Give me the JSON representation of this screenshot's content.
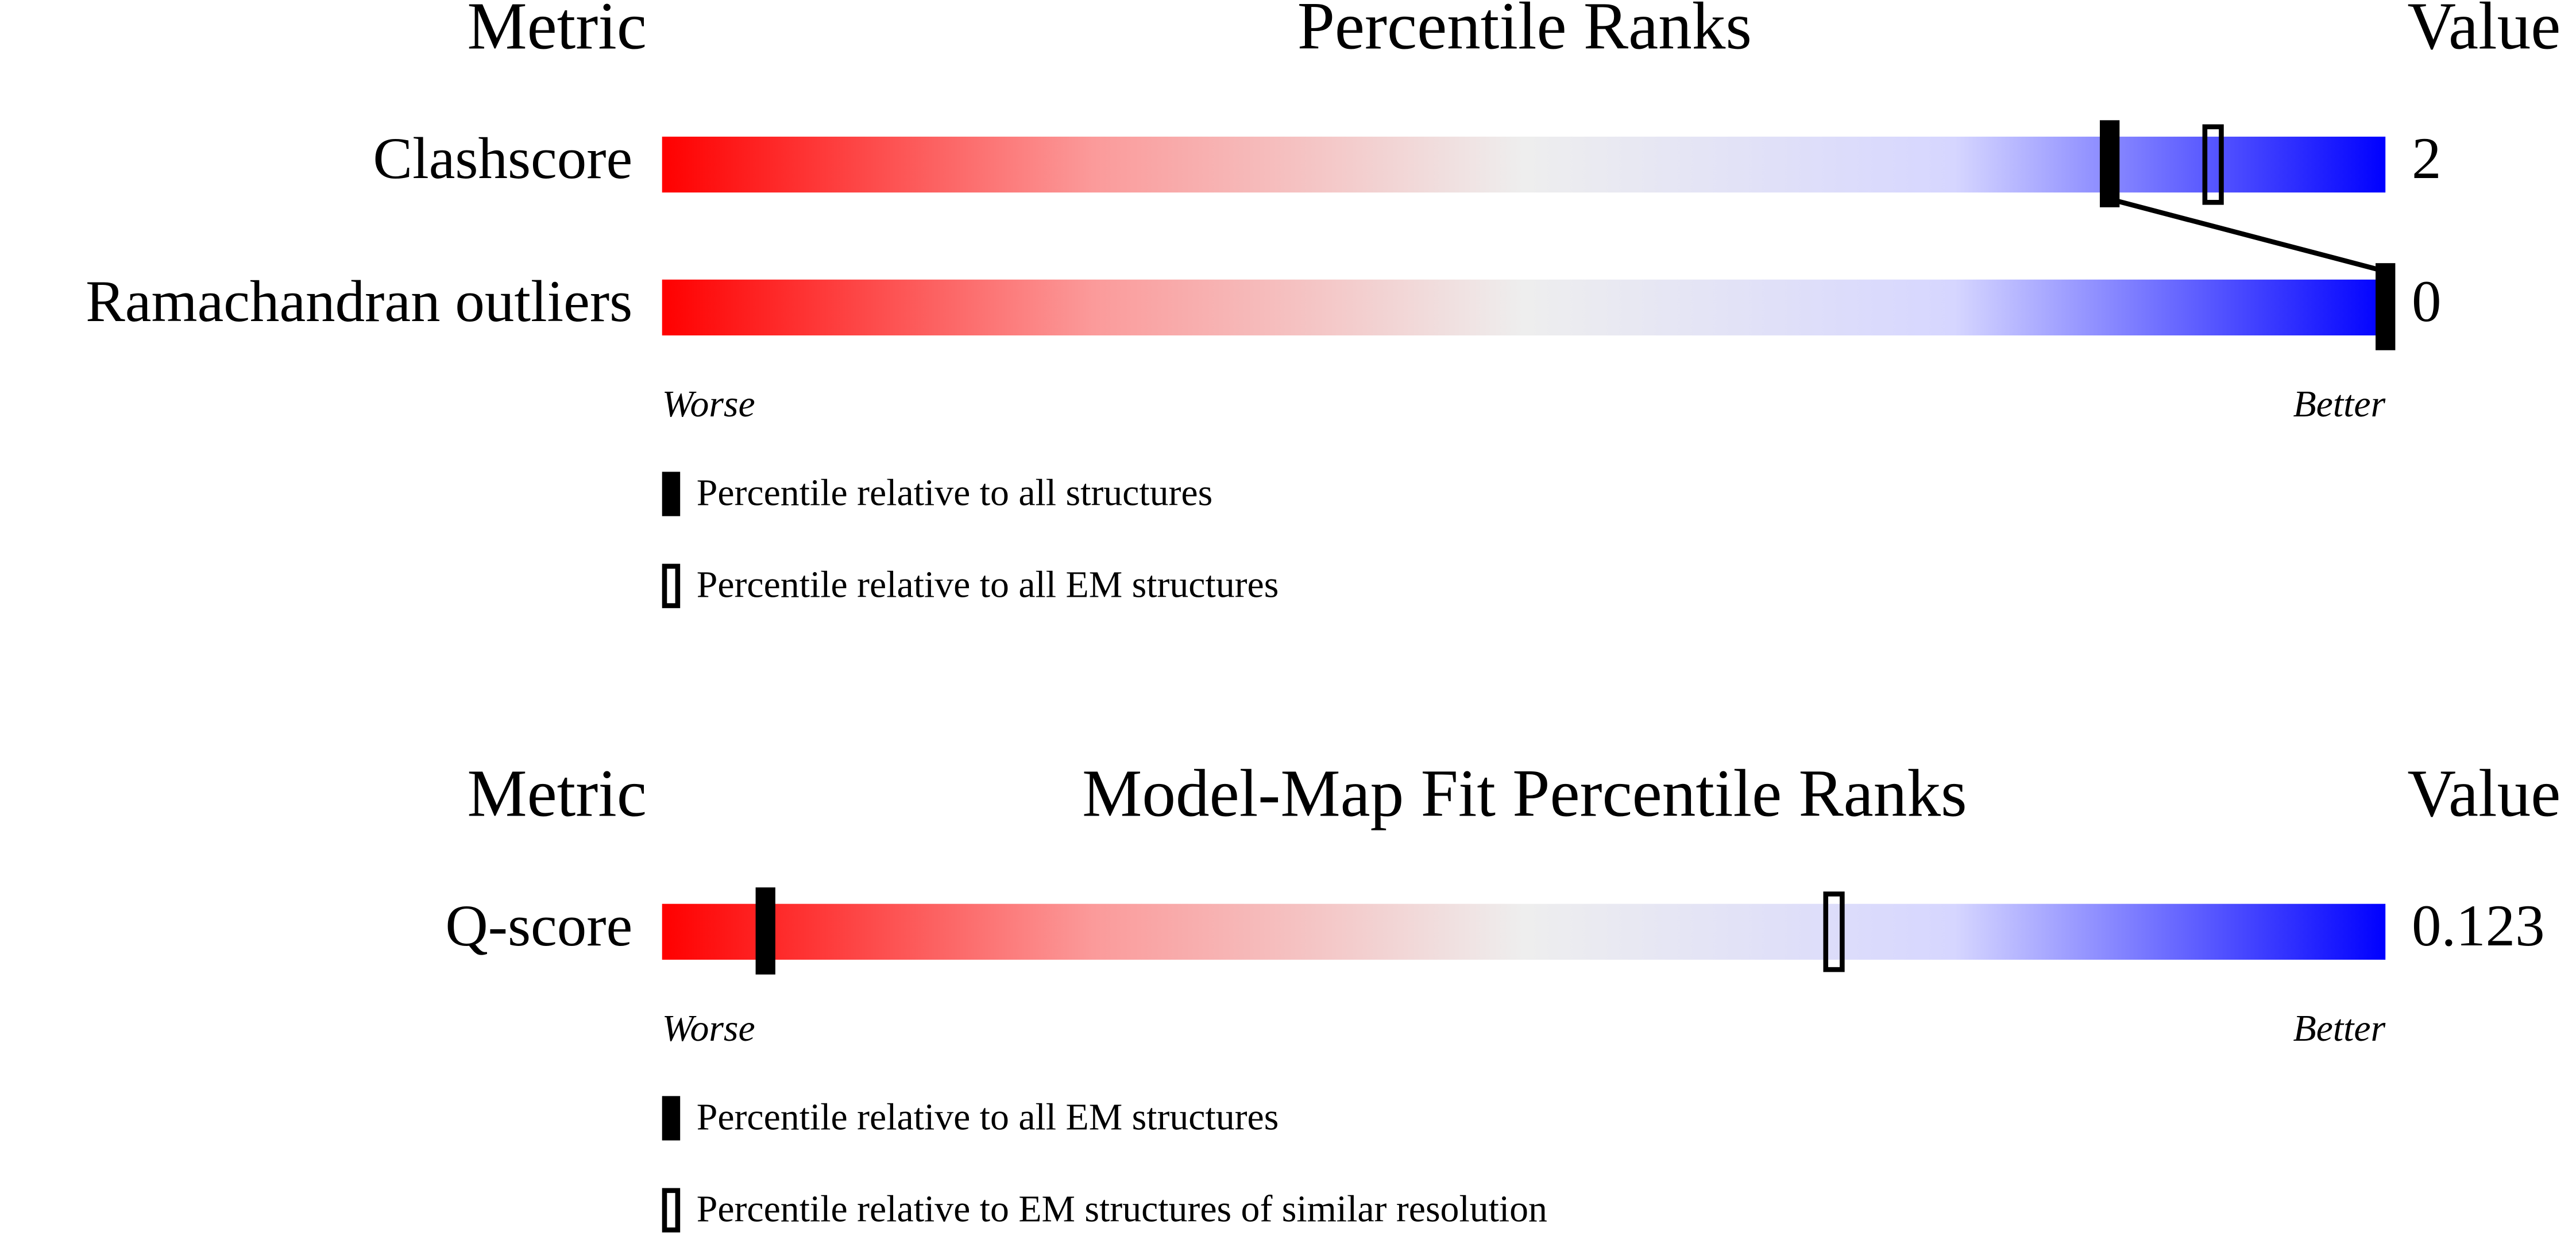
{
  "chart_data": [
    {
      "type": "percentile-slider",
      "headers": {
        "metric": "Metric",
        "title": "Percentile Ranks",
        "value": "Value"
      },
      "xlim": [
        0,
        100
      ],
      "metrics": [
        {
          "name": "Clashscore",
          "value": 2,
          "percentiles": [
            84,
            90
          ]
        },
        {
          "name": "Ramachandran outliers",
          "value": 0,
          "percentiles": [
            100,
            null
          ]
        }
      ],
      "worse": "Worse",
      "better": "Better",
      "series": [
        {
          "name": "Percentile relative to all structures",
          "style": "filled",
          "color": "#000000"
        },
        {
          "name": "Percentile relative to all EM structures",
          "style": "open",
          "color": "#000000"
        }
      ]
    },
    {
      "type": "percentile-slider",
      "headers": {
        "metric": "Metric",
        "title": "Model-Map Fit Percentile Ranks",
        "value": "Value"
      },
      "xlim": [
        0,
        100
      ],
      "metrics": [
        {
          "name": "Q-score",
          "value": 0.123,
          "percentiles": [
            6,
            68
          ]
        }
      ],
      "worse": "Worse",
      "better": "Better",
      "series": [
        {
          "name": "Percentile relative to all EM structures",
          "style": "filled",
          "color": "#000000"
        },
        {
          "name": "Percentile relative to EM structures of similar resolution",
          "style": "open",
          "color": "#000000"
        }
      ]
    }
  ]
}
